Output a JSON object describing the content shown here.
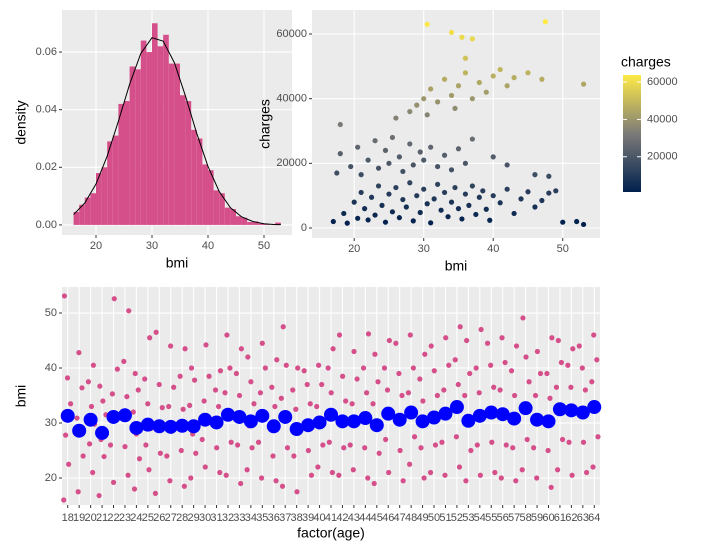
{
  "chart_data": [
    {
      "type": "histogram",
      "x_label": "bmi",
      "y_label": "density",
      "color": "#D5508A",
      "bins": [
        16,
        17,
        18,
        19,
        20,
        21,
        22,
        23,
        24,
        25,
        26,
        27,
        28,
        29,
        30,
        31,
        32,
        33,
        34,
        35,
        36,
        37,
        38,
        39,
        40,
        41,
        42,
        43,
        44,
        45,
        46,
        47,
        48,
        49,
        50,
        51,
        52,
        53
      ],
      "values": [
        0.0045,
        0.007,
        0.0095,
        0.011,
        0.018,
        0.02,
        0.029,
        0.031,
        0.042,
        0.043,
        0.055,
        0.054,
        0.064,
        0.06,
        0.07,
        0.062,
        0.066,
        0.056,
        0.056,
        0.045,
        0.043,
        0.033,
        0.03,
        0.021,
        0.019,
        0.012,
        0.011,
        0.006,
        0.0055,
        0.003,
        0.0025,
        0.001,
        0.0012,
        0.0005,
        0.0003,
        0,
        0.0008
      ],
      "density_line": {
        "color": "#000000",
        "x": [
          16,
          18,
          20,
          22,
          24,
          26,
          28,
          30,
          32,
          34,
          36,
          38,
          40,
          42,
          44,
          46,
          48,
          50,
          52,
          53
        ],
        "values": [
          0.0036,
          0.0076,
          0.0142,
          0.0239,
          0.036,
          0.0488,
          0.0595,
          0.065,
          0.0638,
          0.0563,
          0.0446,
          0.0317,
          0.0203,
          0.0116,
          0.006,
          0.0028,
          0.0012,
          0.0004,
          0.0001,
          0.0001
        ]
      },
      "xlim": [
        13.93,
        55
      ],
      "xticks": [
        20,
        30,
        40,
        50
      ],
      "ylim": [
        -0.0035,
        0.0746
      ],
      "yticks": [
        {
          "value": 0,
          "label": "0.00"
        },
        {
          "value": 0.02,
          "label": "0.02"
        },
        {
          "value": 0.04,
          "label": "0.04"
        },
        {
          "value": 0.06,
          "label": "0.06"
        }
      ],
      "grid": true
    },
    {
      "type": "scatter",
      "x_label": "bmi",
      "y_label": "charges",
      "x": [
        17,
        18.5,
        19,
        20,
        20.5,
        21,
        21.5,
        22,
        22.5,
        23,
        23.5,
        24,
        24.5,
        25,
        25.5,
        26,
        26.5,
        27,
        27.5,
        28,
        28.5,
        29,
        29.5,
        30,
        30.5,
        31,
        31.5,
        32,
        32.5,
        33,
        33.5,
        34,
        34.5,
        35,
        35.5,
        36,
        36.5,
        37,
        37.5,
        38,
        38.5,
        39,
        39.5,
        40,
        41,
        42,
        43,
        44,
        45,
        46,
        47,
        48,
        49,
        50,
        53,
        52,
        17.5,
        18,
        19.5,
        20.5,
        21,
        22,
        23,
        23.5,
        24.5,
        25,
        25.5,
        26.5,
        27,
        28,
        28.5,
        29.5,
        30,
        31,
        32,
        33,
        34,
        35,
        36,
        37,
        40,
        42,
        46,
        48,
        18,
        28,
        29,
        30,
        30.5,
        31,
        32,
        33,
        34,
        34.5,
        35,
        36,
        37,
        38,
        39,
        40,
        41,
        42,
        43,
        45,
        47,
        53,
        26,
        30.5,
        34,
        35.5,
        47.5,
        36,
        37
      ],
      "values": [
        2000,
        4500,
        1500,
        8000,
        3000,
        11000,
        6000,
        2500,
        9500,
        4000,
        13000,
        7000,
        1800,
        10500,
        5000,
        12500,
        3200,
        8800,
        6500,
        14000,
        2200,
        10000,
        4800,
        12000,
        7500,
        1600,
        9000,
        13500,
        5500,
        11000,
        3500,
        8000,
        12500,
        6000,
        2800,
        10500,
        7000,
        13000,
        4200,
        9500,
        11500,
        5800,
        2400,
        10000,
        7800,
        12000,
        4500,
        9000,
        11200,
        6500,
        8500,
        10800,
        11500,
        1800,
        1100,
        2000,
        17000,
        23000,
        19000,
        25000,
        16500,
        21000,
        27000,
        18500,
        24000,
        20000,
        28000,
        22000,
        17500,
        26000,
        19500,
        23500,
        21000,
        25000,
        19000,
        22500,
        18000,
        24500,
        20000,
        27500,
        22000,
        19500,
        16500,
        16000,
        32000,
        36000,
        38000,
        40000,
        35000,
        43000,
        39000,
        46000,
        41000,
        37000,
        44000,
        48000,
        40000,
        45000,
        42000,
        47000,
        49000,
        44000,
        46500,
        48000,
        46000,
        44500,
        34000,
        63000,
        60500,
        59000,
        63800,
        52500,
        58500
      ],
      "xlim": [
        13.93,
        55.36
      ],
      "xticks": [
        20,
        30,
        40,
        50
      ],
      "ylim": [
        -3093,
        67422
      ],
      "yticks": [
        0,
        20000,
        40000,
        60000
      ],
      "grid": true,
      "colorbar": {
        "title": "charges",
        "range": [
          1121,
          63770
        ],
        "colors": [
          "#00204D",
          "#7C7B78",
          "#FFEA46"
        ],
        "ticks": [
          20000,
          40000,
          60000
        ]
      }
    },
    {
      "type": "strip",
      "x_label": "factor(age)",
      "y_label": "bmi",
      "color": "#D5508A",
      "mean_color": "#0000FF",
      "categories": [
        "18",
        "19",
        "20",
        "21",
        "22",
        "23",
        "24",
        "25",
        "26",
        "27",
        "28",
        "29",
        "30",
        "31",
        "32",
        "33",
        "34",
        "35",
        "36",
        "37",
        "38",
        "39",
        "40",
        "41",
        "42",
        "43",
        "44",
        "45",
        "46",
        "47",
        "48",
        "49",
        "50",
        "51",
        "52",
        "53",
        "54",
        "55",
        "56",
        "57",
        "58",
        "59",
        "60",
        "61",
        "62",
        "63",
        "64"
      ],
      "values": [
        [
          16.0,
          22.5,
          27.8,
          33.5,
          38.2,
          53.1
        ],
        [
          17.5,
          24.0,
          28.3,
          30.9,
          36.4,
          42.8
        ],
        [
          21.0,
          26.2,
          29.8,
          33.0,
          37.5,
          40.5
        ],
        [
          16.8,
          23.9,
          27.0,
          31.5,
          34.0,
          36.7
        ],
        [
          19.2,
          26.0,
          30.5,
          35.3,
          39.8,
          52.6
        ],
        [
          20.5,
          25.7,
          31.0,
          34.8,
          41.2,
          50.4
        ],
        [
          18.0,
          23.5,
          28.0,
          32.0,
          36.0,
          39.0
        ],
        [
          21.5,
          26.0,
          29.0,
          33.5,
          38.0,
          45.5
        ],
        [
          17.2,
          24.5,
          29.3,
          32.8,
          37.0,
          46.5
        ],
        [
          19.5,
          24.0,
          28.5,
          33.0,
          36.5,
          44.0
        ],
        [
          18.5,
          25.0,
          29.8,
          32.5,
          38.5,
          43.5
        ],
        [
          20.0,
          24.5,
          28.0,
          33.2,
          37.8,
          40.0
        ],
        [
          22.0,
          27.0,
          30.5,
          34.0,
          38.5,
          44.2
        ],
        [
          21.0,
          25.5,
          29.8,
          33.0,
          36.0,
          39.5
        ],
        [
          20.5,
          26.5,
          31.0,
          35.5,
          40.0,
          46.0
        ],
        [
          19.0,
          26.0,
          30.5,
          35.0,
          39.0,
          43.5
        ],
        [
          21.5,
          25.5,
          29.5,
          33.5,
          37.5,
          42.0
        ],
        [
          20.0,
          26.5,
          31.0,
          35.5,
          40.0,
          44.5
        ],
        [
          19.5,
          24.0,
          29.0,
          33.0,
          36.5,
          41.5
        ],
        [
          18.5,
          25.5,
          30.5,
          34.5,
          40.5,
          47.5
        ],
        [
          17.5,
          24.0,
          28.5,
          32.5,
          36.0,
          40.0
        ],
        [
          20.5,
          25.0,
          29.5,
          33.5,
          37.0,
          39.5
        ],
        [
          22.0,
          26.0,
          29.5,
          33.0,
          37.0,
          40.5
        ],
        [
          21.0,
          26.5,
          31.0,
          35.5,
          40.0,
          43.5
        ],
        [
          20.5,
          25.5,
          30.0,
          34.0,
          38.5,
          46.0
        ],
        [
          21.5,
          26.0,
          30.0,
          33.5,
          38.0,
          43.0
        ],
        [
          20.0,
          25.5,
          31.0,
          35.5,
          40.0,
          46.2
        ],
        [
          19.0,
          24.5,
          29.0,
          33.5,
          37.5,
          42.5
        ],
        [
          21.0,
          27.0,
          31.5,
          36.0,
          40.0,
          45.0
        ],
        [
          19.5,
          25.0,
          30.5,
          35.0,
          39.0,
          44.5
        ],
        [
          22.5,
          27.5,
          31.5,
          35.5,
          40.0,
          46.0
        ],
        [
          20.0,
          25.5,
          30.0,
          34.0,
          38.0,
          42.5
        ],
        [
          21.0,
          26.0,
          30.5,
          35.0,
          39.5,
          44.0
        ],
        [
          20.5,
          26.5,
          31.5,
          36.0,
          40.5,
          45.5
        ],
        [
          22.0,
          27.5,
          32.5,
          37.0,
          41.5,
          47.5
        ],
        [
          19.5,
          25.0,
          30.0,
          35.0,
          39.0,
          45.0
        ],
        [
          20.5,
          26.0,
          31.0,
          35.5,
          40.0,
          47.0
        ],
        [
          21.0,
          26.5,
          32.0,
          36.5,
          40.5,
          44.5
        ],
        [
          20.0,
          26.0,
          31.5,
          36.0,
          41.0,
          45.5
        ],
        [
          19.5,
          25.5,
          30.5,
          35.0,
          39.5,
          44.0
        ],
        [
          21.5,
          27.0,
          32.5,
          37.5,
          42.0,
          49.1
        ],
        [
          20.0,
          25.5,
          30.5,
          35.0,
          39.0,
          43.0
        ],
        [
          18.3,
          25.0,
          30.0,
          34.5,
          39.0,
          45.5
        ],
        [
          21.5,
          27.0,
          32.0,
          36.5,
          41.0,
          45.0
        ],
        [
          20.5,
          26.5,
          32.0,
          36.5,
          40.5,
          43.5
        ],
        [
          21.0,
          26.5,
          31.5,
          36.0,
          40.0,
          44.0
        ],
        [
          22.0,
          27.5,
          33.0,
          37.5,
          41.5,
          46.0
        ]
      ],
      "mean_values": [
        31.3,
        28.6,
        30.6,
        28.2,
        31.1,
        31.4,
        29.1,
        29.7,
        29.4,
        29.3,
        29.5,
        29.4,
        30.6,
        30.1,
        31.5,
        31.1,
        30.3,
        31.3,
        29.4,
        31.1,
        28.9,
        29.6,
        30.1,
        31.5,
        30.3,
        30.3,
        30.9,
        29.6,
        31.7,
        30.6,
        31.9,
        30.3,
        31.0,
        31.7,
        32.9,
        30.4,
        31.3,
        31.9,
        31.6,
        30.8,
        32.7,
        30.6,
        30.3,
        32.5,
        32.3,
        31.9,
        32.9
      ],
      "ylim": [
        15.09,
        54.73
      ],
      "yticks": [
        20,
        30,
        40,
        50
      ],
      "grid": true
    }
  ]
}
